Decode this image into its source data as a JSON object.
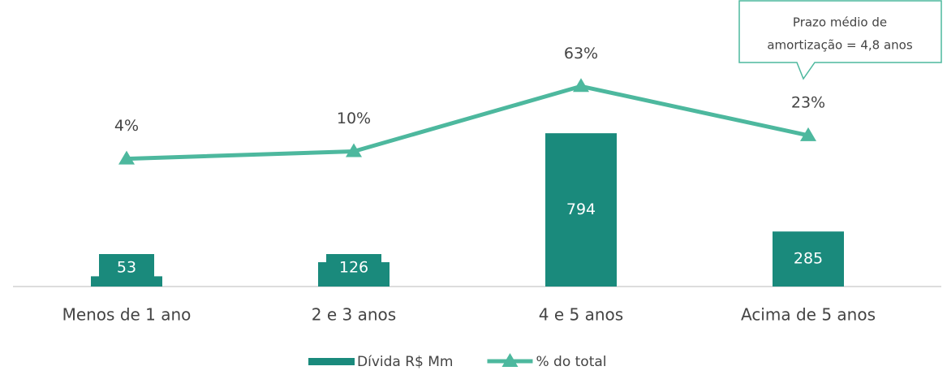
{
  "chart_data": {
    "type": "bar",
    "categories": [
      "Menos de 1 ano",
      "2 e 3 anos",
      "4 e 5 anos",
      "Acima de 5 anos"
    ],
    "series": [
      {
        "name": "Dívida R$ Mm",
        "type": "bar",
        "color": "#1a8a7c",
        "values": [
          53,
          126,
          794,
          285
        ]
      },
      {
        "name": "% do total",
        "type": "line",
        "axis": "y2",
        "color": "#4db89e",
        "values": [
          4,
          10,
          63,
          23
        ],
        "value_labels": [
          "4%",
          "10%",
          "63%",
          "23%"
        ]
      }
    ],
    "ylim": [
      0,
      1400
    ],
    "y2lim": [
      -100,
      120
    ],
    "annotation": [
      "Prazo médio de",
      "amortização = 4,8 anos"
    ],
    "legend": "bottom"
  }
}
